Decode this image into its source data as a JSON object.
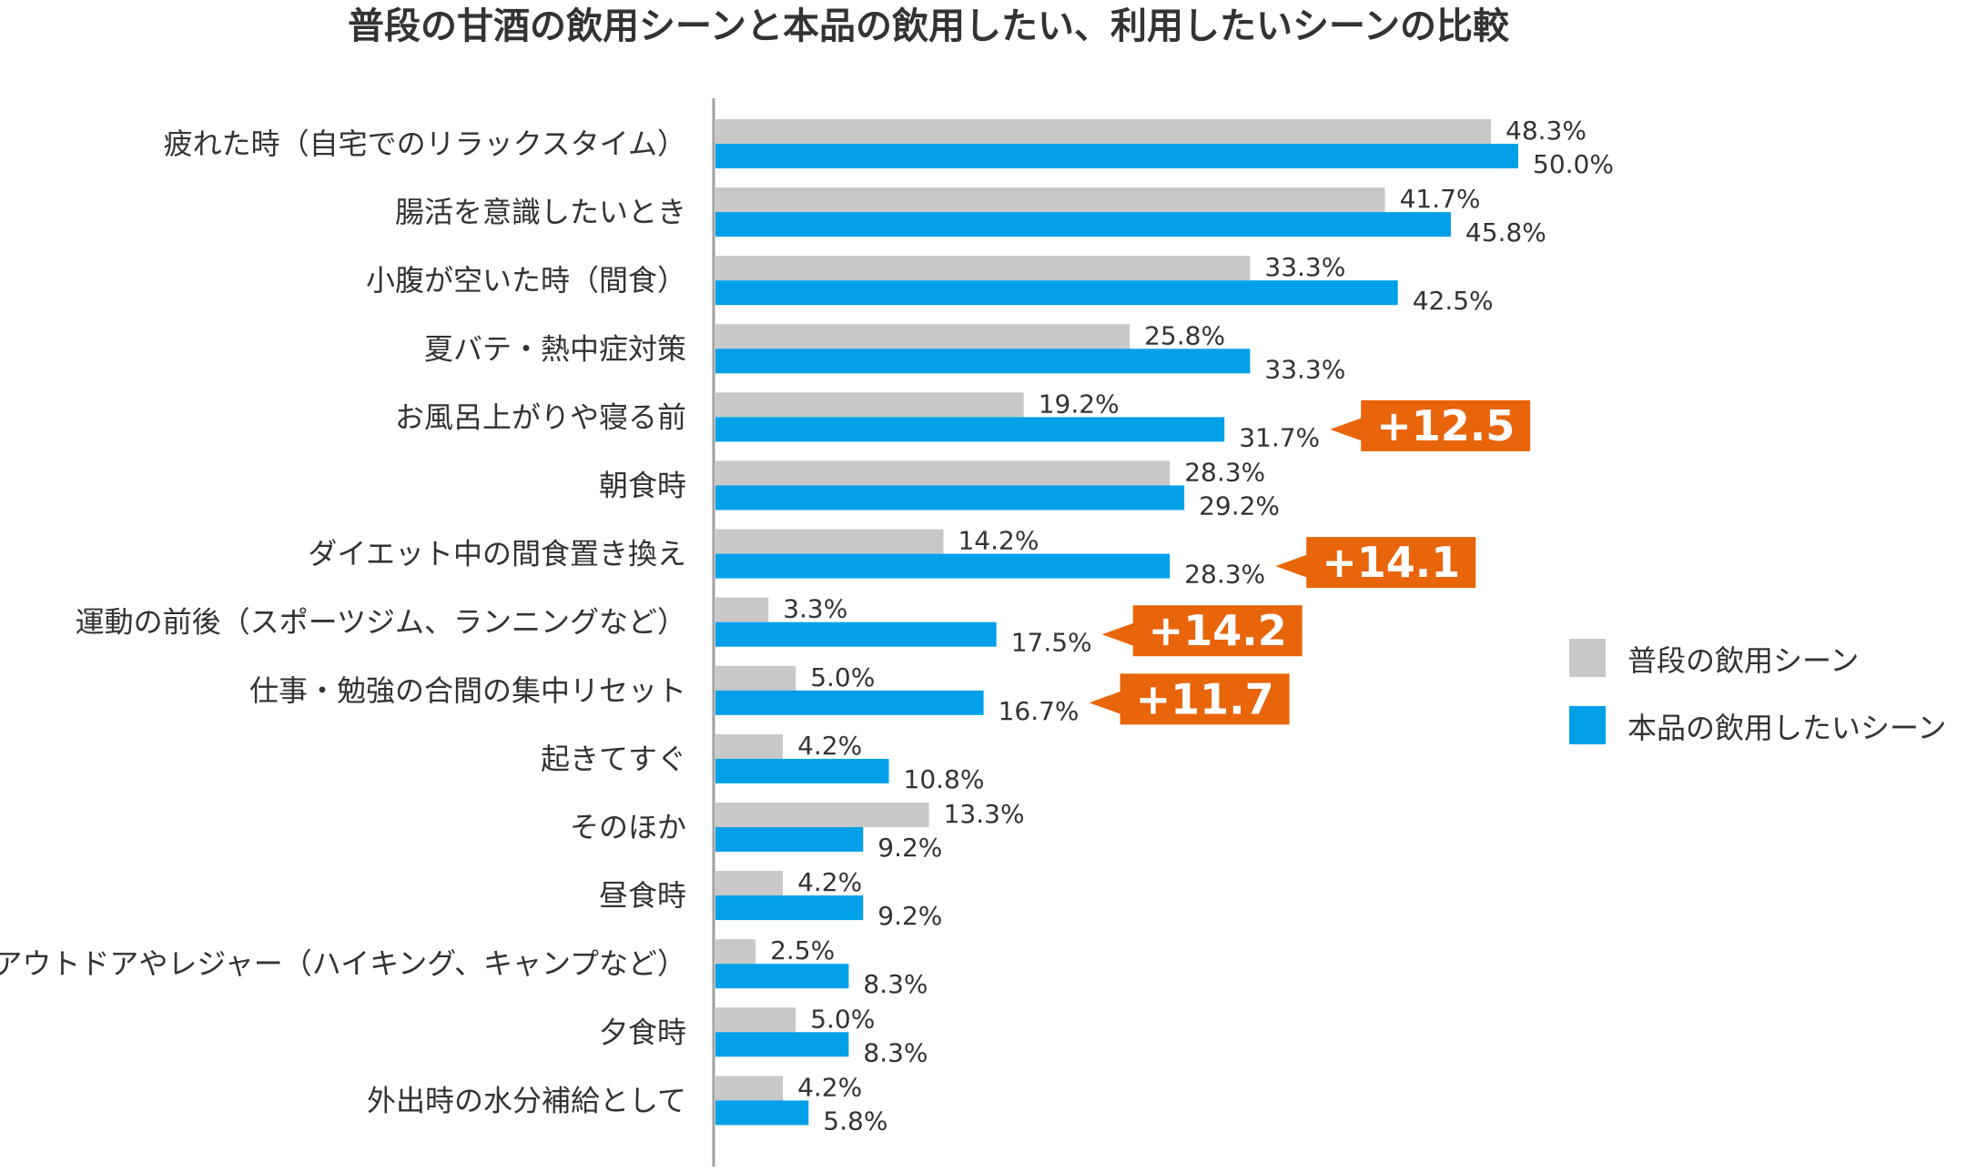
{
  "chart_data": {
    "type": "bar",
    "orientation": "horizontal",
    "title": "普段の甘酒の飲用シーンと本品の飲用したい、利用したいシーンの比較",
    "categories": [
      "疲れた時（自宅でのリラックスタイム）",
      "腸活を意識したいとき",
      "小腹が空いた時（間食）",
      "夏バテ・熱中症対策",
      "お風呂上がりや寝る前",
      "朝食時",
      "ダイエット中の間食置き換え",
      "運動の前後（スポーツジム、ランニングなど）",
      "仕事・勉強の合間の集中リセット",
      "起きてすぐ",
      "そのほか",
      "昼食時",
      "アウトドアやレジャー（ハイキング、キャンプなど）",
      "夕食時",
      "外出時の水分補給として"
    ],
    "series": [
      {
        "name": "普段の飲用シーン",
        "color": "#c8c8c8",
        "values": [
          48.3,
          41.7,
          33.3,
          25.8,
          19.2,
          28.3,
          14.2,
          3.3,
          5.0,
          4.2,
          13.3,
          4.2,
          2.5,
          5.0,
          4.2
        ],
        "labels": [
          "48.3%",
          "41.7%",
          "33.3%",
          "25.8%",
          "19.2%",
          "28.3%",
          "14.2%",
          "3.3%",
          "5.0%",
          "4.2%",
          "13.3%",
          "4.2%",
          "2.5%",
          "5.0%",
          "4.2%"
        ]
      },
      {
        "name": "本品の飲用したいシーン",
        "color": "#00a0e9",
        "values": [
          50.0,
          45.8,
          42.5,
          33.3,
          31.7,
          29.2,
          28.3,
          17.5,
          16.7,
          10.8,
          9.2,
          9.2,
          8.3,
          8.3,
          5.8
        ],
        "labels": [
          "50.0%",
          "45.8%",
          "42.5%",
          "33.3%",
          "31.7%",
          "29.2%",
          "28.3%",
          "17.5%",
          "16.7%",
          "10.8%",
          "9.2%",
          "9.2%",
          "8.3%",
          "8.3%",
          "5.8%"
        ]
      }
    ],
    "annotations": [
      {
        "category_index": 4,
        "text": "+12.5"
      },
      {
        "category_index": 6,
        "text": "+14.1"
      },
      {
        "category_index": 7,
        "text": "+14.2"
      },
      {
        "category_index": 8,
        "text": "+11.7"
      }
    ],
    "callout_color": "#e8650a",
    "axis_color": "#a0a0a0",
    "xlim": [
      0,
      50
    ],
    "legend_position": "right"
  }
}
